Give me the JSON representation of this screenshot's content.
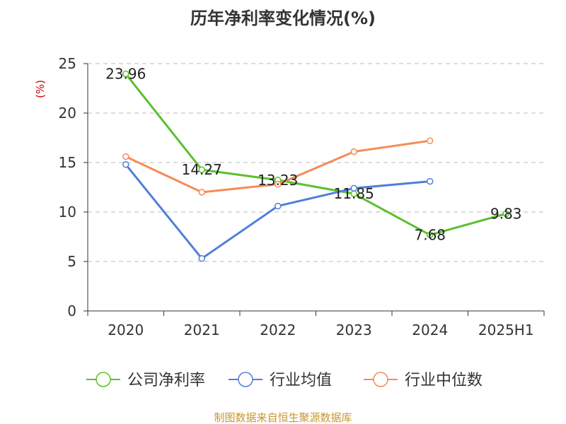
{
  "chart_data": {
    "type": "line",
    "title": "历年净利率变化情况(%)",
    "ylabel": "(%)",
    "xlabel": "",
    "categories": [
      "2020",
      "2021",
      "2022",
      "2023",
      "2024",
      "2025H1"
    ],
    "ylim": [
      0,
      25
    ],
    "yticks": [
      0,
      5,
      10,
      15,
      20,
      25
    ],
    "grid": true,
    "legend_position": "bottom",
    "series": [
      {
        "name": "公司净利率",
        "color": "#5cc02f",
        "values": [
          23.96,
          14.27,
          13.23,
          11.85,
          7.68,
          9.83
        ],
        "labels": [
          "23.96",
          "14.27",
          "13.23",
          "11.85",
          "7.68",
          "9.83"
        ]
      },
      {
        "name": "行业均值",
        "color": "#4f7fd8",
        "values": [
          14.8,
          5.3,
          10.6,
          12.4,
          13.1,
          null
        ]
      },
      {
        "name": "行业中位数",
        "color": "#f58b55",
        "values": [
          15.6,
          12.0,
          12.8,
          16.1,
          17.2,
          null
        ]
      }
    ]
  },
  "footer": "制图数据来自恒生聚源数据库"
}
